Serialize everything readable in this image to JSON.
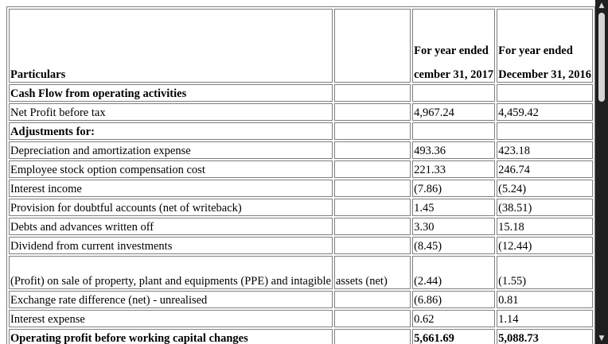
{
  "header": {
    "particulars": "Particulars",
    "col2": "",
    "year1_top": "For year ended",
    "year1_bottom": "cember 31, 2017",
    "year2_top": "For year ended",
    "year2_bottom": "December 31, 2016"
  },
  "rows": [
    {
      "label": "Cash Flow from operating activities",
      "extra": "",
      "v2017": "",
      "v2016": "",
      "bold": true
    },
    {
      "label": "Net Profit before tax",
      "extra": "",
      "v2017": "4,967.24",
      "v2016": "4,459.42",
      "bold": false
    },
    {
      "label": "Adjustments for:",
      "extra": "",
      "v2017": "",
      "v2016": "",
      "bold": true
    },
    {
      "label": "Depreciation and amortization expense",
      "extra": "",
      "v2017": "493.36",
      "v2016": "423.18",
      "bold": false
    },
    {
      "label": "Employee stock option compensation cost",
      "extra": "",
      "v2017": "221.33",
      "v2016": "246.74",
      "bold": false
    },
    {
      "label": "Interest income",
      "extra": "",
      "v2017": "(7.86)",
      "v2016": "(5.24)",
      "bold": false
    },
    {
      "label": "Provision for doubtful accounts (net of writeback)",
      "extra": "",
      "v2017": "1.45",
      "v2016": "(38.51)",
      "bold": false
    },
    {
      "label": "Debts and advances written off",
      "extra": "",
      "v2017": "3.30",
      "v2016": "15.18",
      "bold": false
    },
    {
      "label": "Dividend from current investments",
      "extra": "",
      "v2017": "(8.45)",
      "v2016": "(12.44)",
      "bold": false
    },
    {
      "label": "(Profit) on sale of property, plant and equipments (PPE) and intagible",
      "extra": "assets (net)",
      "v2017": "(2.44)",
      "v2016": "(1.55)",
      "bold": false
    },
    {
      "label": "Exchange rate difference (net) - unrealised",
      "extra": "",
      "v2017": "(6.86)",
      "v2016": "0.81",
      "bold": false
    },
    {
      "label": "Interest expense",
      "extra": "",
      "v2017": "0.62",
      "v2016": "1.14",
      "bold": false
    },
    {
      "label": "Operating profit before working capital changes",
      "extra": "",
      "v2017": "5,661.69",
      "v2016": "5,088.73",
      "bold": true
    }
  ],
  "scrollbar": {
    "up_icon": "triangle-up",
    "down_icon": "triangle-down"
  }
}
